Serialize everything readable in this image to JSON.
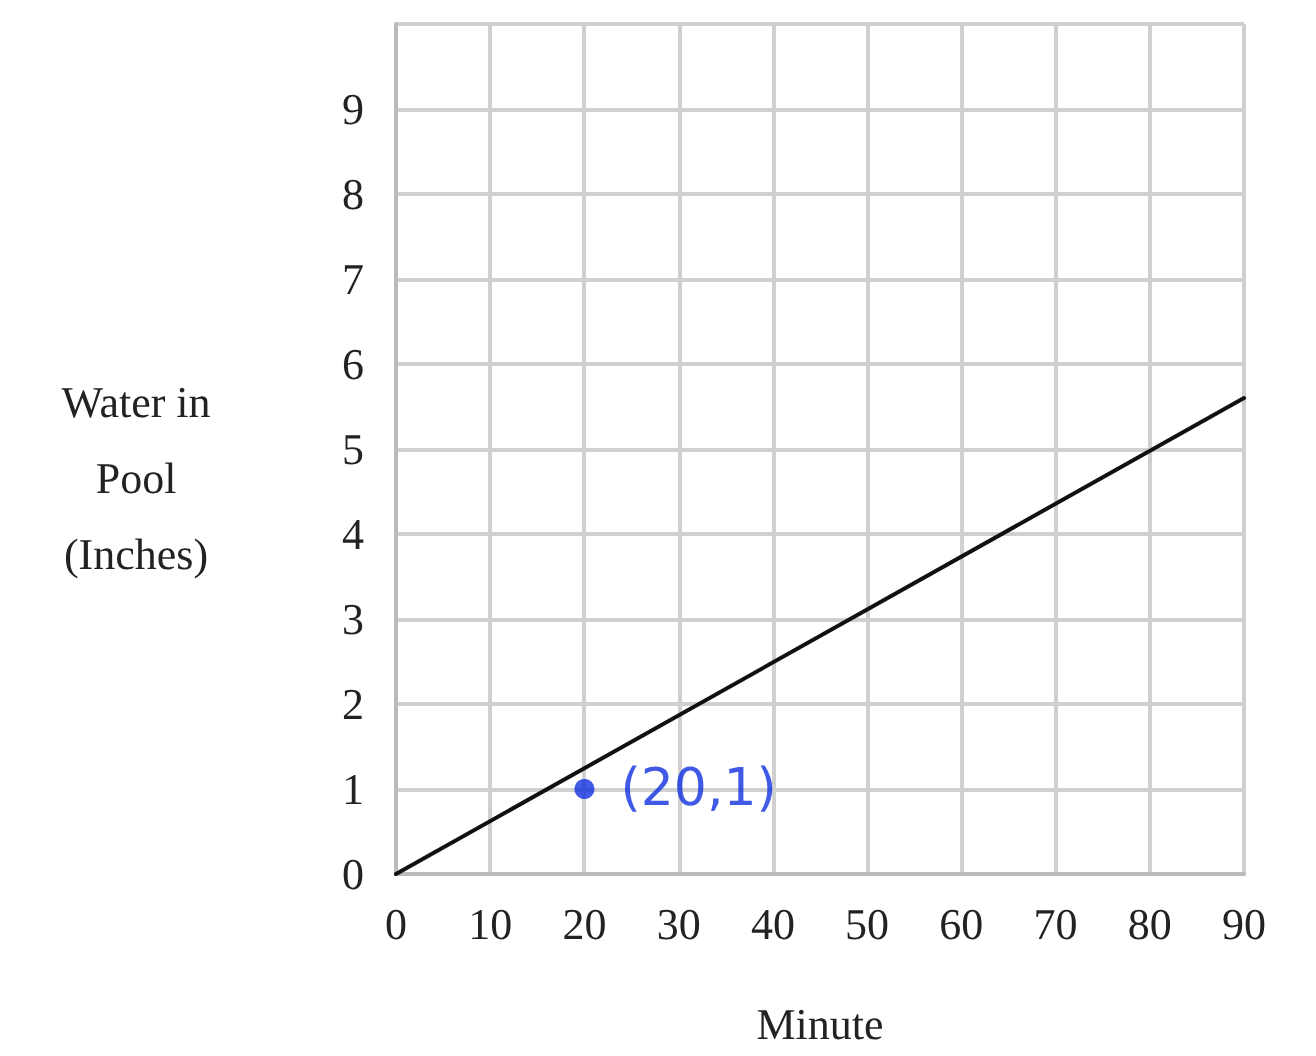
{
  "chart_data": {
    "type": "line",
    "xlabel": "Minute",
    "ylabel": "Water in Pool (Inches)",
    "xlim": [
      0,
      90
    ],
    "xticks": [
      0,
      10,
      20,
      30,
      40,
      50,
      60,
      70,
      80,
      90
    ],
    "ylim": [
      0,
      10
    ],
    "yticks": [
      0,
      1,
      2,
      3,
      4,
      5,
      6,
      7,
      8,
      9,
      {
        "value": 10,
        "label": null
      }
    ],
    "grid": true,
    "line_style": "solid",
    "series": [
      {
        "color": "#111111",
        "x": [
          0,
          90
        ],
        "values": [
          0,
          5.6
        ]
      },
      {
        "type": "scatter",
        "color": "#1030e0",
        "x": [
          20
        ],
        "values": [
          1
        ]
      }
    ],
    "annotations": [
      {
        "text": "(20,1)",
        "x": 20,
        "y": 1
      }
    ]
  }
}
